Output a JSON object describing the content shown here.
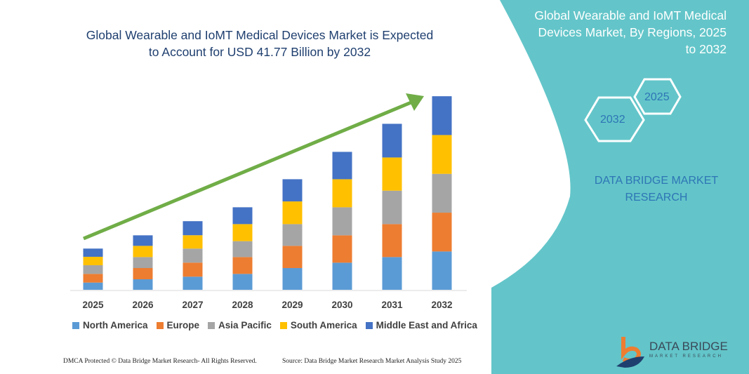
{
  "header": {
    "title_line1": "Global Wearable and IoMT Medical Devices Market is Expected",
    "title_line2": "to Account for USD 41.77 Billion by 2032"
  },
  "side": {
    "title_line1": "Global Wearable and IoMT Medical",
    "title_line2": "Devices Market, By Regions, 2025",
    "title_line3": "to 2032",
    "hex_start": "2025",
    "hex_end": "2032",
    "brand_line1": "DATA BRIDGE MARKET",
    "brand_line2": "RESEARCH",
    "panel_color": "#63c5c9"
  },
  "logo": {
    "name": "DATA BRIDGE",
    "tagline": "MARKET RESEARCH"
  },
  "footer": {
    "left": "DMCA Protected © Data Bridge Market Research- All Rights Reserved.",
    "right": "Source: Data Bridge Market Research Market Analysis Study 2025"
  },
  "chart_data": {
    "type": "bar",
    "stacked": true,
    "units": "USD Billion (estimated)",
    "trend_arrow": true,
    "arrow_color": "#70ad47",
    "categories": [
      "2025",
      "2026",
      "2027",
      "2028",
      "2029",
      "2030",
      "2031",
      "2032"
    ],
    "series": [
      {
        "name": "North America",
        "color": "#5b9bd5",
        "values": [
          1.56,
          2.27,
          2.83,
          3.43,
          4.69,
          5.85,
          7.06,
          8.27
        ]
      },
      {
        "name": "Europe",
        "color": "#ed7d31",
        "values": [
          1.87,
          2.42,
          3.03,
          3.63,
          4.79,
          5.9,
          7.11,
          8.37
        ]
      },
      {
        "name": "Asia Pacific",
        "color": "#a5a5a5",
        "values": [
          1.87,
          2.37,
          3.03,
          3.43,
          4.69,
          6.05,
          7.21,
          8.37
        ]
      },
      {
        "name": "South America",
        "color": "#ffc000",
        "values": [
          1.82,
          2.42,
          2.88,
          3.68,
          4.89,
          6.05,
          7.16,
          8.37
        ]
      },
      {
        "name": "Middle East and Africa",
        "color": "#4472c4",
        "values": [
          1.77,
          2.27,
          3.03,
          3.63,
          4.79,
          5.9,
          7.26,
          8.37
        ]
      }
    ],
    "ylim": [
      0,
      41.77
    ],
    "grid": false,
    "legend": "bottom"
  }
}
